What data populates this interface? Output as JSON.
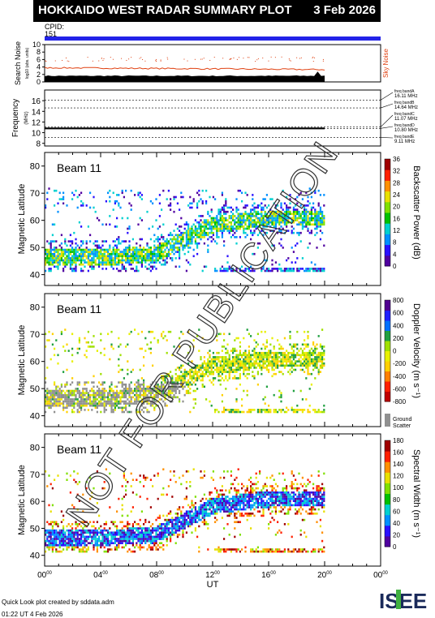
{
  "header": {
    "title": "HOKKAIDO WEST RADAR SUMMARY PLOT",
    "date": "3 Feb 2026",
    "cpid_label": "CPID:",
    "cpid_value": "151"
  },
  "colors": {
    "title_bg": "#000000",
    "cpid_bar": "#2323e8",
    "sky_noise": "#e04010",
    "search_noise": "#000000",
    "ground_scatter": "#909090"
  },
  "noise_panel": {
    "ylabel": "Search Noise",
    "ylabel_unit": "log10 (abs. units)",
    "yticks": [
      "0",
      "2",
      "4",
      "6",
      "8",
      "10"
    ],
    "legend": "Sky Noise"
  },
  "frequency_panel": {
    "ylabel": "Frequency",
    "ylabel_unit": "(MHz)",
    "yticks": [
      "8",
      "10",
      "12",
      "14",
      "16"
    ],
    "bands": [
      {
        "label": "freq bandA",
        "value": "16.11 MHz"
      },
      {
        "label": "freq bandB",
        "value": "14.64 MHz"
      },
      {
        "label": "freq bandC",
        "value": "11.07 MHz"
      },
      {
        "label": "freq bandD",
        "value": "10.80 MHz"
      },
      {
        "label": "freq bandE",
        "value": "9.11 MHz"
      }
    ]
  },
  "panels": [
    {
      "beam_label": "Beam 11",
      "ylabel": "Magnetic Latitude",
      "yticks": [
        "40",
        "50",
        "60",
        "70",
        "80"
      ],
      "cbar_label": "Backscatter Power (dB)",
      "cbar_ticks": [
        "0",
        "4",
        "8",
        "12",
        "16",
        "20",
        "24",
        "28",
        "32",
        "36"
      ],
      "ground": false
    },
    {
      "beam_label": "Beam 11",
      "ylabel": "Magnetic Latitude",
      "yticks": [
        "40",
        "50",
        "60",
        "70",
        "80"
      ],
      "cbar_label": "Doppler Velocity (m s⁻¹)",
      "cbar_ticks": [
        "-800",
        "-600",
        "-400",
        "-200",
        "0",
        "200",
        "400",
        "600",
        "800"
      ],
      "ground": true,
      "ground_label_1": "Ground",
      "ground_label_2": "Scatter"
    },
    {
      "beam_label": "Beam 11",
      "ylabel": "Magnetic Latitude",
      "yticks": [
        "40",
        "50",
        "60",
        "70",
        "80"
      ],
      "cbar_label": "Spectral Width (m s⁻¹)",
      "cbar_ticks": [
        "0",
        "20",
        "40",
        "60",
        "80",
        "100",
        "120",
        "140",
        "160",
        "180"
      ],
      "ground": false
    }
  ],
  "xaxis": {
    "label": "UT",
    "ticks": [
      {
        "h": "00",
        "sup": "00"
      },
      {
        "h": "04",
        "sup": "00"
      },
      {
        "h": "08",
        "sup": "00"
      },
      {
        "h": "12",
        "sup": "00"
      },
      {
        "h": "16",
        "sup": "00"
      },
      {
        "h": "20",
        "sup": "00"
      },
      {
        "h": "00",
        "sup": "00"
      }
    ]
  },
  "footer": {
    "line1": "Quick Look plot created by sddata.adm",
    "line2": "01:22 UT  4 Feb 2026"
  },
  "logo": {
    "text": "ISEE"
  },
  "watermark": "NOT FOR PUBLICATION",
  "chart_data": {
    "type": "heatmap",
    "title": "HOKKAIDO WEST RADAR SUMMARY PLOT",
    "date": "3 Feb 2026",
    "xlabel": "UT",
    "xlim_hours": [
      0,
      24
    ],
    "data_end_hour": 20,
    "ylabel": "Magnetic Latitude",
    "ylim": [
      36,
      85
    ],
    "search_noise": {
      "ylim": [
        0,
        10
      ],
      "level": 1.5
    },
    "sky_noise": {
      "level_start": 3.8,
      "level_end": 3.3
    },
    "frequency_mhz": {
      "ylim": [
        7.5,
        18
      ],
      "operating": 10.8,
      "bands": [
        16.11,
        14.64,
        11.07,
        10.8,
        9.11
      ]
    },
    "backscatter_power_db": {
      "range": [
        0,
        36
      ]
    },
    "doppler_velocity_ms": {
      "range": [
        -800,
        800
      ]
    },
    "spectral_width_ms": {
      "range": [
        0,
        180
      ]
    }
  }
}
